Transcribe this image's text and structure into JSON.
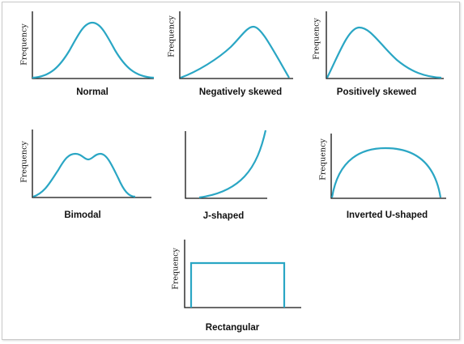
{
  "colors": {
    "curve": "#2aa6c4",
    "axis": "#111111"
  },
  "axis_label": "Frequency",
  "panels": [
    {
      "caption": "Normal",
      "shape": "normal"
    },
    {
      "caption": "Negatively skewed",
      "shape": "negatively-skewed"
    },
    {
      "caption": "Positively skewed",
      "shape": "positively-skewed"
    },
    {
      "caption": "Bimodal",
      "shape": "bimodal"
    },
    {
      "caption": "J-shaped",
      "shape": "j-shaped"
    },
    {
      "caption": "Inverted U-shaped",
      "shape": "inverted-u-shaped"
    },
    {
      "caption": "Rectangular",
      "shape": "rectangular"
    }
  ]
}
